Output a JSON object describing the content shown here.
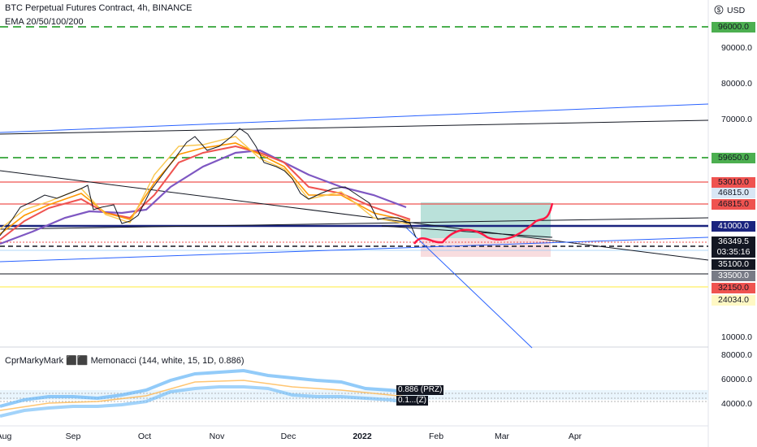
{
  "header": {
    "title": "BTC Perpetual Futures Contract, 4h, BINANCE",
    "ema": "EMA 20/50/100/200",
    "currency": "USD",
    "currency_icon": "dollar-sign-icon"
  },
  "price_axis": {
    "ticks": [
      "90000.0",
      "80000.0",
      "70000.0",
      "10000.0"
    ],
    "tags": [
      {
        "label": "96000.0",
        "color": "#4caf50",
        "text_color": "#131722"
      },
      {
        "label": "59650.0",
        "color": "#4caf50",
        "text_color": "#131722"
      },
      {
        "label": "53010.0",
        "color": "#ef5350",
        "text_color": "#131722"
      },
      {
        "label": "46815.0",
        "color": "#d9e7f5",
        "text_color": "#131722"
      },
      {
        "label": "46815.0",
        "color": "#ef5350",
        "text_color": "#131722"
      },
      {
        "label": "41000.0",
        "color": "#1a237e",
        "text_color": "#ffffff"
      },
      {
        "label": "36349.5",
        "color": "#131722",
        "text_color": "#ffffff"
      },
      {
        "label": "03:35:16",
        "color": "#131722",
        "text_color": "#ffffff"
      },
      {
        "label": "35100.0",
        "color": "#131722",
        "text_color": "#ffffff"
      },
      {
        "label": "33500.0",
        "color": "#787b86",
        "text_color": "#ffffff"
      },
      {
        "label": "32150.0",
        "color": "#ef5350",
        "text_color": "#131722"
      },
      {
        "label": "24034.0",
        "color": "#fff8c4",
        "text_color": "#131722"
      }
    ]
  },
  "time_axis": {
    "labels": [
      "Aug",
      "Sep",
      "Oct",
      "Nov",
      "Dec",
      "2022",
      "Feb",
      "Mar",
      "Apr"
    ]
  },
  "oscillator": {
    "title": "CprMarkyMark ⬛⬛ Memonacci (144, white, 15, 1D, 0.886)",
    "ticks": [
      "80000.0",
      "60000.0",
      "40000.0"
    ],
    "overlay_1": "0.886 (PRZ)",
    "overlay_2": "0.1...(Z)"
  },
  "chart_data": {
    "type": "line",
    "title": "BTC Perpetual Futures Contract, 4h, BINANCE",
    "x_labels": [
      "Aug",
      "Sep",
      "Oct",
      "Nov",
      "Dec",
      "2022",
      "Feb",
      "Mar",
      "Apr"
    ],
    "series": [
      {
        "name": "EMA 20/50/100/200",
        "values": [
          40000,
          47000,
          44000,
          46000,
          48000,
          62000,
          66000,
          58000,
          52000,
          47000,
          46000,
          42000,
          40000,
          37000
        ]
      }
    ],
    "price_levels": [
      96000,
      59650,
      53010,
      46815,
      41000,
      36349.5,
      35100,
      33500,
      32150,
      24034
    ],
    "yaxis_ticks": [
      90000,
      80000,
      70000,
      10000
    ],
    "last_price": 36349.5,
    "countdown": "03:35:16"
  }
}
